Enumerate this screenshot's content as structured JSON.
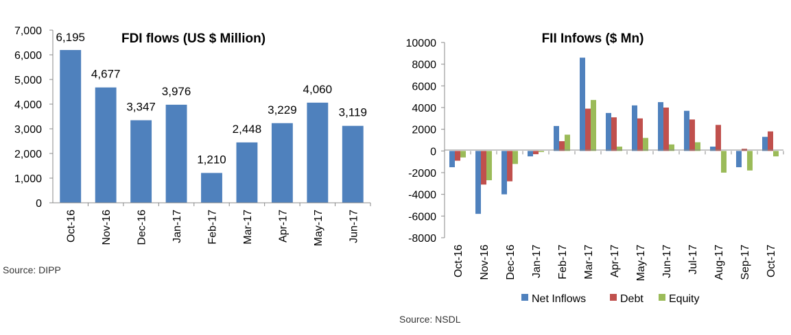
{
  "chart_data": [
    {
      "type": "bar",
      "title": "FDI flows (US $ Million)",
      "categories": [
        "Oct-16",
        "Nov-16",
        "Dec-16",
        "Jan-17",
        "Feb-17",
        "Mar-17",
        "Apr-17",
        "May-17",
        "Jun-17"
      ],
      "values": [
        6195,
        4677,
        3347,
        3976,
        1210,
        2448,
        3229,
        4060,
        3119
      ],
      "data_labels": [
        "6,195",
        "4,677",
        "3,347",
        "3,976",
        "1,210",
        "2,448",
        "3,229",
        "4,060",
        "3,119"
      ],
      "yticks": [
        "0",
        "1,000",
        "2,000",
        "3,000",
        "4,000",
        "5,000",
        "6,000",
        "7,000"
      ],
      "ylim": [
        0,
        7000
      ],
      "grid": false,
      "source": "Source: DIPP",
      "colors": {
        "bar": "#4F81BD"
      }
    },
    {
      "type": "bar",
      "title": "FII Infows ($ Mn)",
      "categories": [
        "Oct-16",
        "Nov-16",
        "Dec-16",
        "Jan-17",
        "Feb-17",
        "Mar-17",
        "Apr-17",
        "May-17",
        "Jun-17",
        "Jul-17",
        "Aug-17",
        "Sep-17",
        "Oct-17"
      ],
      "series": [
        {
          "name": "Net Inflows",
          "color": "#4F81BD",
          "values": [
            -1500,
            -5800,
            -4000,
            -500,
            2300,
            8600,
            3500,
            4200,
            4500,
            3700,
            400,
            -1500,
            1300
          ]
        },
        {
          "name": "Debt",
          "color": "#C0504D",
          "values": [
            -900,
            -3100,
            -2800,
            -300,
            900,
            3900,
            3100,
            3000,
            4000,
            2900,
            2400,
            200,
            1800
          ]
        },
        {
          "name": "Equity",
          "color": "#9BBB59",
          "values": [
            -600,
            -2700,
            -1200,
            -100,
            1500,
            4700,
            400,
            1200,
            600,
            800,
            -2000,
            -1800,
            -500
          ]
        }
      ],
      "yticks": [
        "-8000",
        "-6000",
        "-4000",
        "-2000",
        "0",
        "2000",
        "4000",
        "6000",
        "8000",
        "10000"
      ],
      "ylim": [
        -8000,
        10000
      ],
      "grid": false,
      "legend_position": "bottom",
      "source": "Source: NSDL"
    }
  ]
}
